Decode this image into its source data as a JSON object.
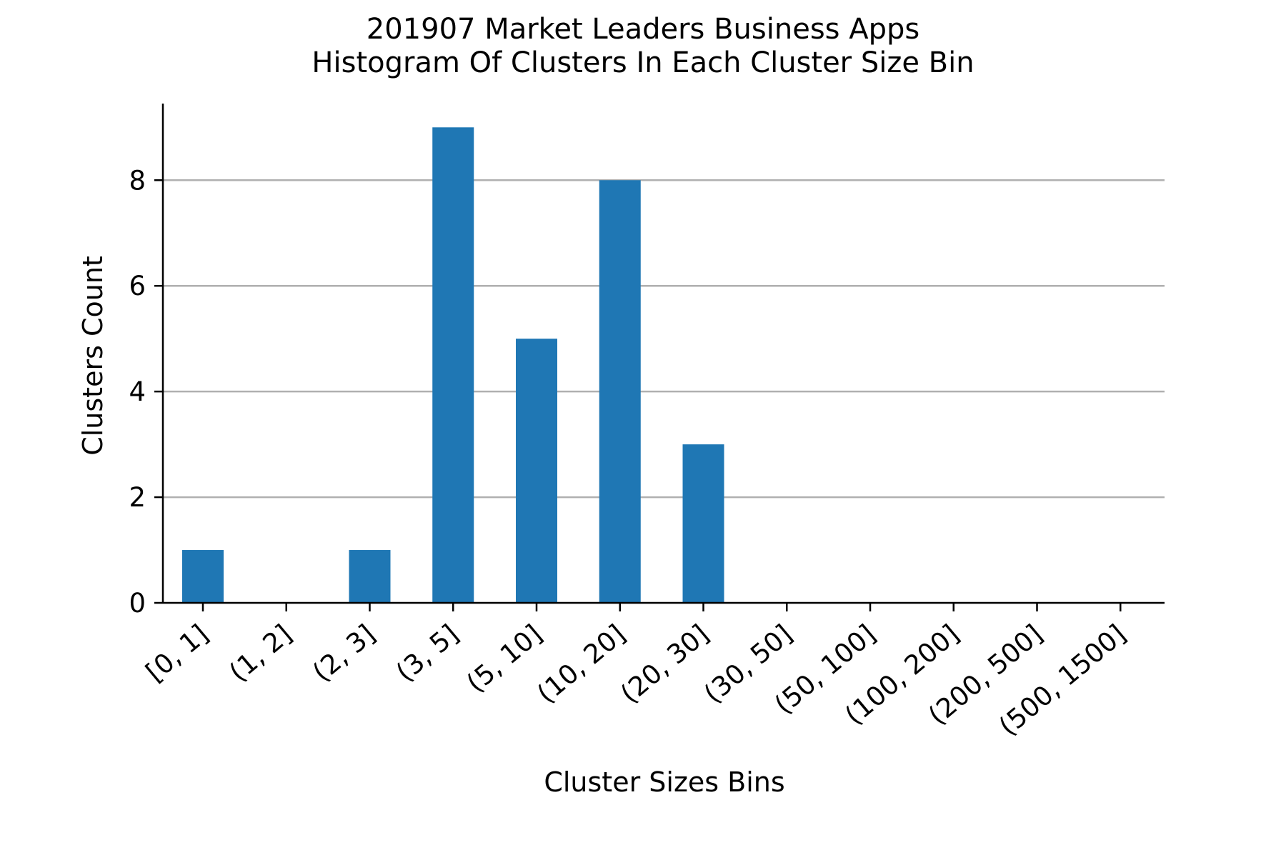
{
  "chart_data": {
    "type": "bar",
    "title": "201907 Market Leaders Business Apps",
    "subtitle": "Histogram Of Clusters In Each Cluster Size Bin",
    "xlabel": "Cluster Sizes Bins",
    "ylabel": "Clusters Count",
    "categories": [
      "[0, 1]",
      "(1, 2]",
      "(2, 3]",
      "(3, 5]",
      "(5, 10]",
      "(10, 20]",
      "(20, 30]",
      "(30, 50]",
      "(50, 100]",
      "(100, 200]",
      "(200, 500]",
      "(500, 1500]"
    ],
    "values": [
      1,
      0,
      1,
      9,
      5,
      8,
      3,
      0,
      0,
      0,
      0,
      0
    ],
    "ylim": [
      0,
      9.45
    ],
    "yticks": [
      0,
      2,
      4,
      6,
      8
    ],
    "grid": "horizontal",
    "colors": {
      "bar": "#1f77b4",
      "grid": "#b0b0b0",
      "axis": "#000000"
    }
  }
}
